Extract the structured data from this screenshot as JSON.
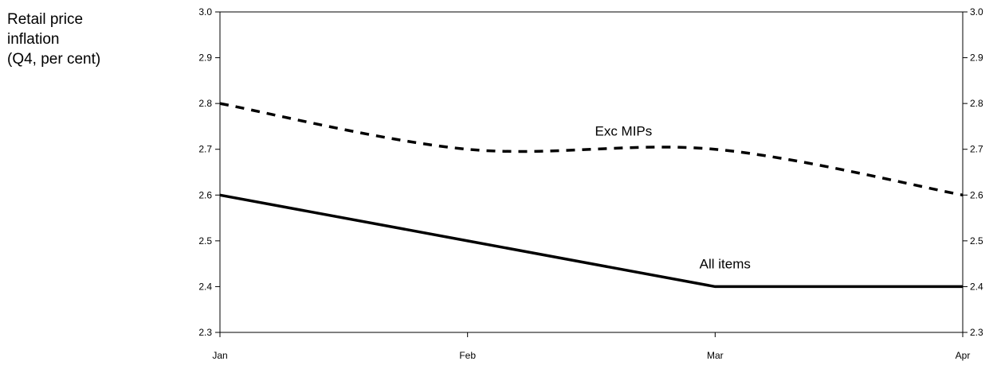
{
  "chart_data": {
    "type": "line",
    "title": "",
    "ylabel_lines": [
      "Retail price",
      "inflation",
      "(Q4, per cent)"
    ],
    "xlabel": "",
    "categories": [
      "Jan",
      "Feb",
      "Mar",
      "Apr"
    ],
    "ylim": [
      2.3,
      3.0
    ],
    "yticks": [
      "2.3",
      "2.4",
      "2.5",
      "2.6",
      "2.7",
      "2.8",
      "2.9",
      "3.0"
    ],
    "grid": false,
    "series": [
      {
        "name": "Exc MIPs",
        "values": [
          2.8,
          2.7,
          2.7,
          2.6
        ],
        "style": "dashed",
        "color": "#000000"
      },
      {
        "name": "All items",
        "values": [
          2.6,
          2.5,
          2.4,
          2.4
        ],
        "style": "solid",
        "color": "#000000"
      }
    ]
  }
}
